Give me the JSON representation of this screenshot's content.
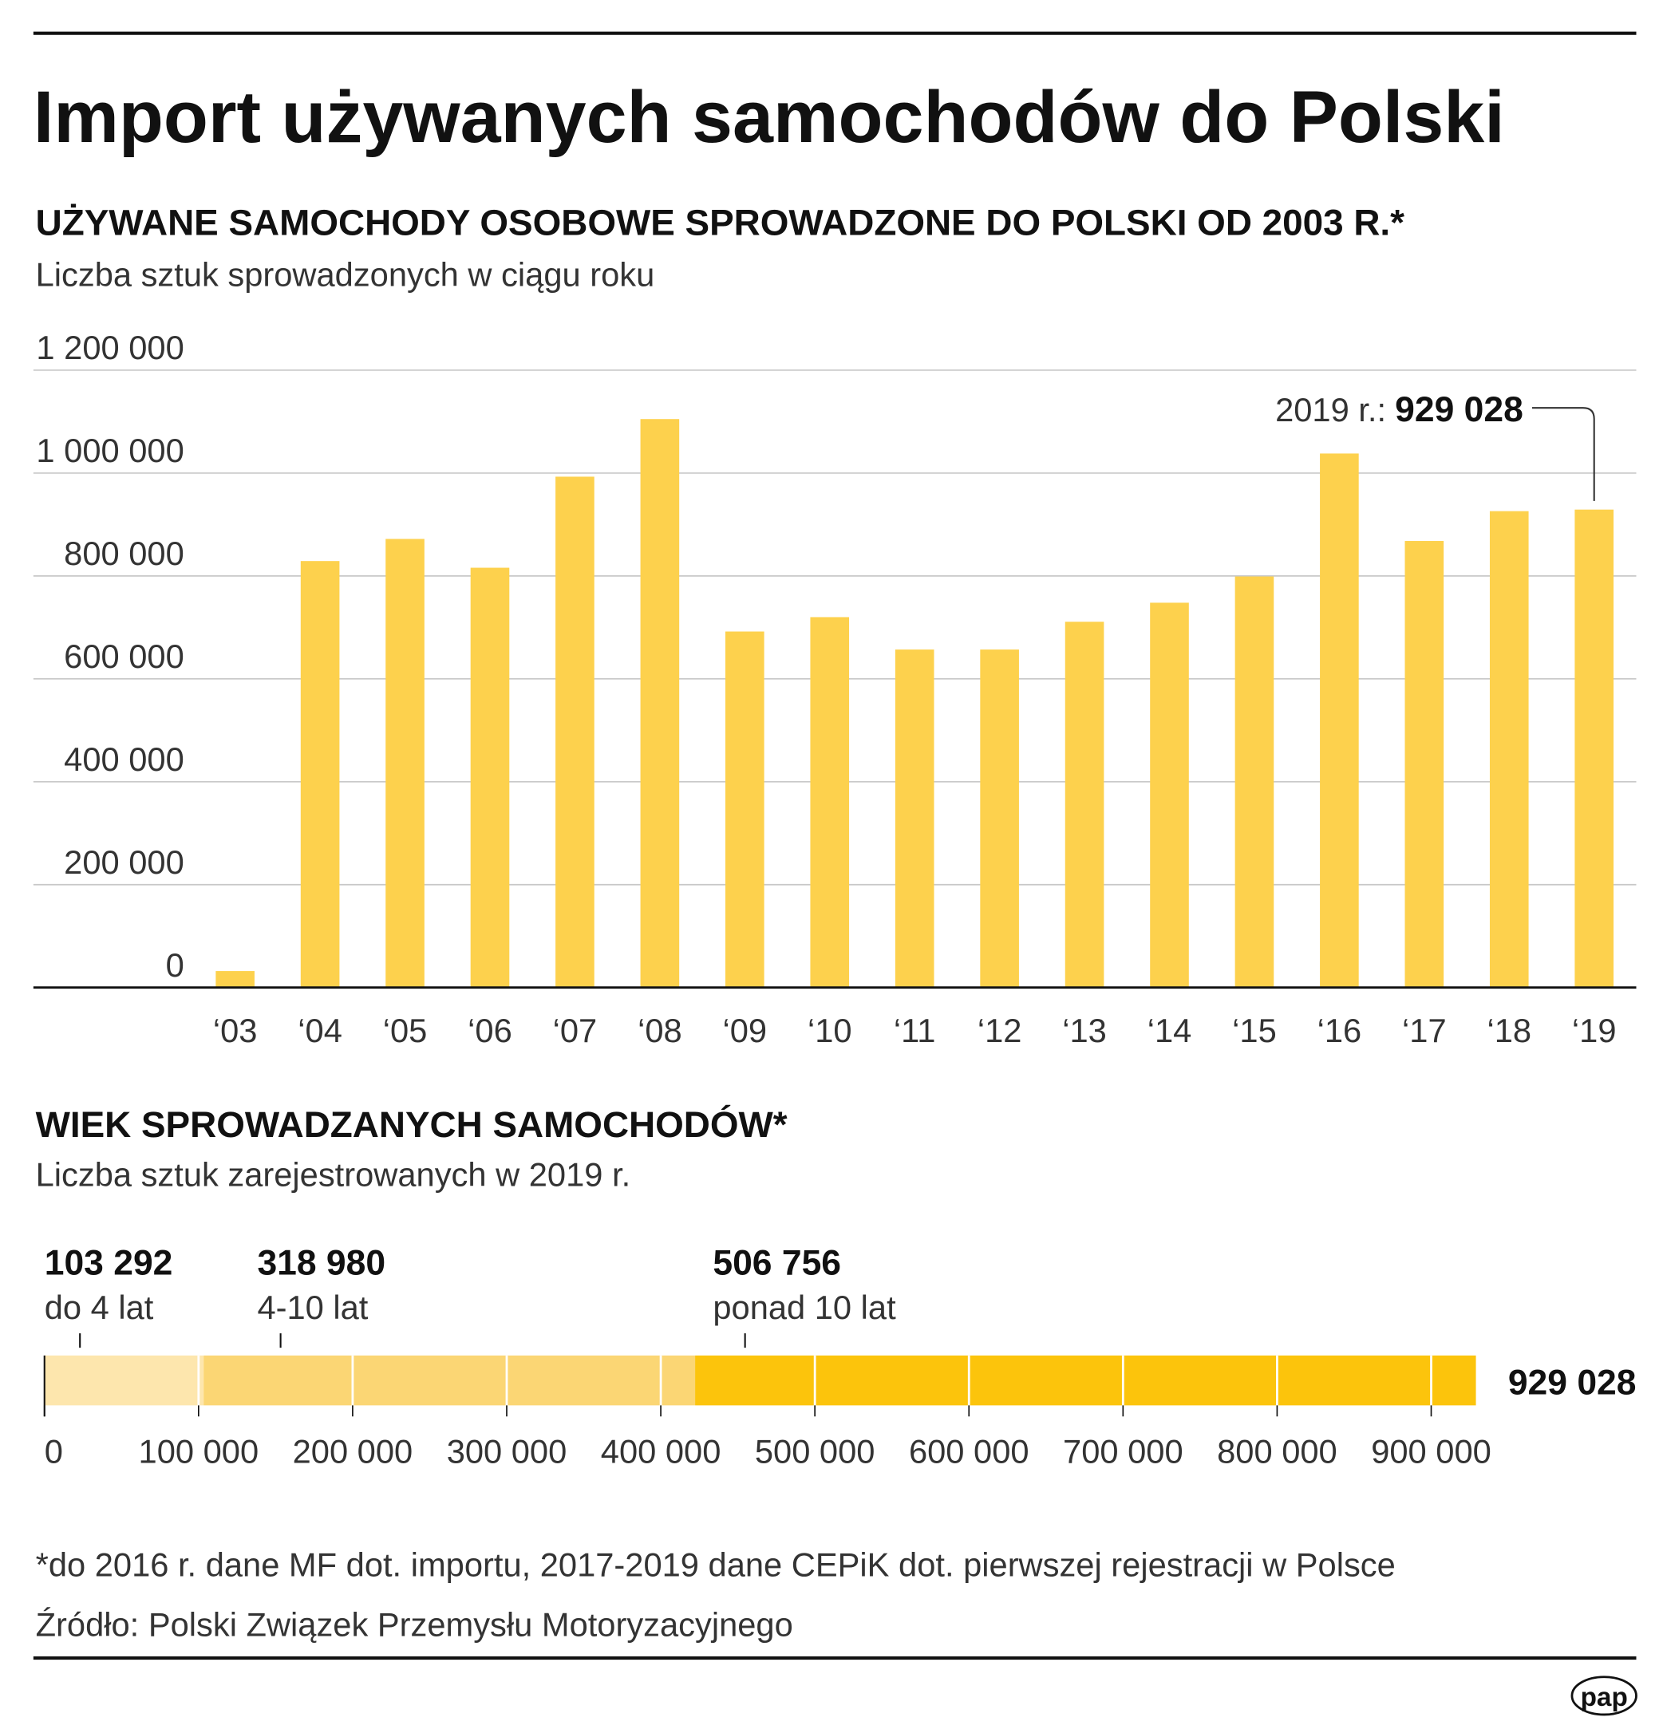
{
  "title": "Import używanych samochodów do Polski",
  "chart_data": [
    {
      "type": "bar",
      "title": "UŻYWANE SAMOCHODY OSOBOWE SPROWADZONE DO POLSKI OD 2003 R.*",
      "subtitle": "Liczba sztuk sprowadzonych w ciągu roku",
      "categories": [
        "‘03",
        "‘04",
        "‘05",
        "‘06",
        "‘07",
        "‘08",
        "‘09",
        "‘10",
        "‘11",
        "‘12",
        "‘13",
        "‘14",
        "‘15",
        "‘16",
        "‘17",
        "‘18",
        "‘19"
      ],
      "values": [
        32000,
        829000,
        872000,
        816000,
        993000,
        1105000,
        692000,
        720000,
        657000,
        657000,
        711000,
        748000,
        799000,
        1038000,
        868000,
        926000,
        929028
      ],
      "ylim": [
        0,
        1200000
      ],
      "yticks": [
        0,
        200000,
        400000,
        600000,
        800000,
        1000000,
        1200000
      ],
      "ytick_labels": [
        "0",
        "200 000",
        "400 000",
        "600 000",
        "800 000",
        "1 000 000",
        "1 200 000"
      ],
      "grid": true,
      "bar_color": "#fdd14d",
      "annotation": {
        "prefix": "2019 r.:",
        "value": "929 028"
      }
    },
    {
      "type": "stacked-bar",
      "title": "WIEK SPROWADZANYCH SAMOCHODÓW*",
      "subtitle": "Liczba sztuk zarejestrowanych w 2019 r.",
      "segments": [
        {
          "name": "do 4 lat",
          "value": 103292,
          "label": "103 292",
          "color": "#fde6ad"
        },
        {
          "name": "4-10 lat",
          "value": 318980,
          "label": "318 980",
          "color": "#fbd674"
        },
        {
          "name": "ponad 10 lat",
          "value": 506756,
          "label": "506 756",
          "color": "#fcc40c"
        }
      ],
      "total_label": "929 028",
      "xlim": [
        0,
        929028
      ],
      "xticks": [
        0,
        100000,
        200000,
        300000,
        400000,
        500000,
        600000,
        700000,
        800000,
        900000
      ],
      "xtick_labels": [
        "0",
        "100 000",
        "200 000",
        "300 000",
        "400 000",
        "500 000",
        "600 000",
        "700 000",
        "800 000",
        "900 000"
      ]
    }
  ],
  "footnote": "*do 2016 r. dane MF dot. importu, 2017-2019 dane CEPiK dot. pierwszej rejestracji w Polsce",
  "source": "Źródło: Polski Związek Przemysłu Motoryzacyjnego",
  "logo": "pap"
}
